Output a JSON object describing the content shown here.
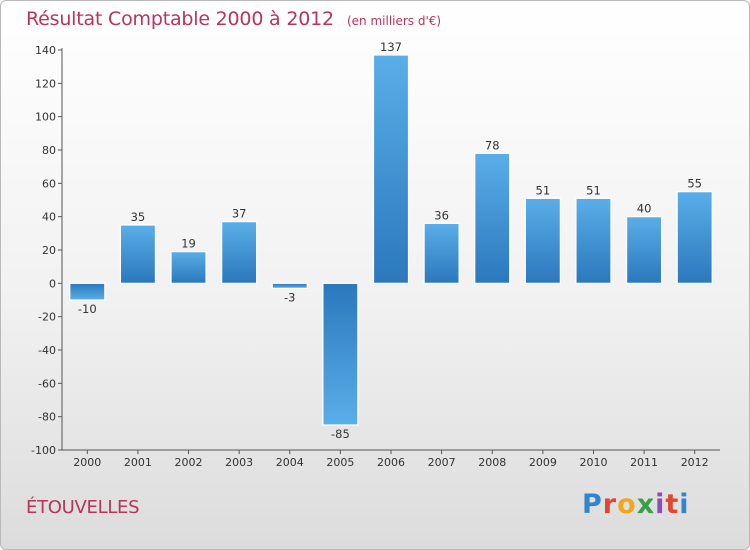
{
  "header": {
    "title": "Résultat Comptable 2000 à 2012",
    "subtitle": "(en milliers d'€)"
  },
  "footer": {
    "commune": "ÉTOUVELLES",
    "logo": "Proxiti"
  },
  "colors": {
    "title": "#b8345a",
    "bar_light": "#5aaee8",
    "bar_dark": "#2b78bd",
    "axis": "#333333"
  },
  "chart_data": {
    "type": "bar",
    "title": "Résultat Comptable 2000 à 2012",
    "subtitle": "(en milliers d'€)",
    "xlabel": "",
    "ylabel": "",
    "categories": [
      "2000",
      "2001",
      "2002",
      "2003",
      "2004",
      "2005",
      "2006",
      "2007",
      "2008",
      "2009",
      "2010",
      "2011",
      "2012"
    ],
    "values": [
      -10,
      35,
      19,
      37,
      -3,
      -85,
      137,
      36,
      78,
      51,
      51,
      40,
      55
    ],
    "ylim": [
      -100,
      140
    ],
    "yticks": [
      -100,
      -80,
      -60,
      -40,
      -20,
      0,
      20,
      40,
      60,
      80,
      100,
      120,
      140
    ],
    "grid": false,
    "legend": "none"
  }
}
